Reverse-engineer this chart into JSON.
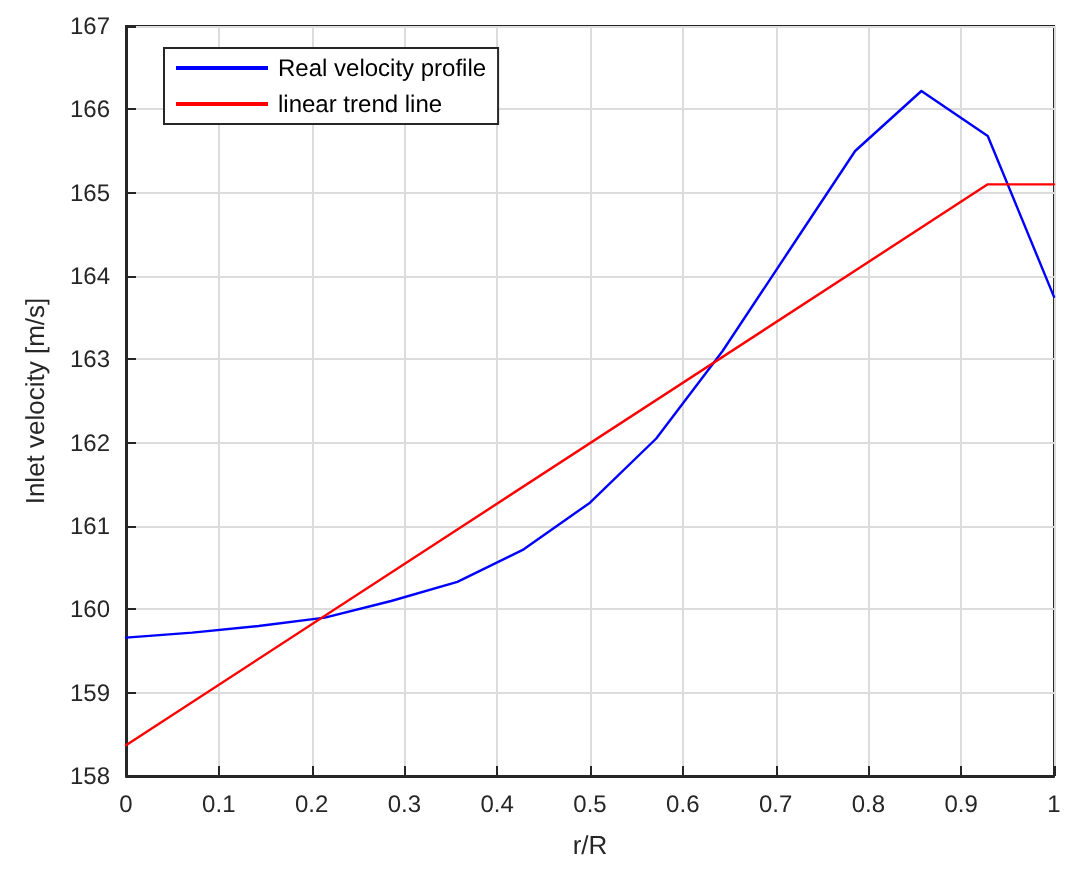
{
  "chart_data": {
    "type": "line",
    "xlabel": "r/R",
    "ylabel": "Inlet velocity [m/s]",
    "x": [
      0,
      0.0714,
      0.1429,
      0.2143,
      0.2857,
      0.3571,
      0.4286,
      0.5,
      0.5714,
      0.6429,
      0.7143,
      0.7857,
      0.8571,
      0.9286,
      1
    ],
    "series": [
      {
        "name": "Real velocity profile",
        "color": "#0000ff",
        "values": [
          159.66,
          159.72,
          159.8,
          159.9,
          160.1,
          160.33,
          160.72,
          161.28,
          162.05,
          163.1,
          164.3,
          165.5,
          166.22,
          165.68,
          163.75
        ]
      },
      {
        "name": "linear trend line",
        "color": "#ff0000",
        "x": [
          0,
          0.9286,
          1
        ],
        "values": [
          158.37,
          165.1,
          165.1
        ]
      }
    ],
    "xlim": [
      0,
      1
    ],
    "xticks": [
      0,
      0.1,
      0.2,
      0.3,
      0.4,
      0.5,
      0.6,
      0.7,
      0.8,
      0.9,
      1
    ],
    "ylim": [
      158,
      167
    ],
    "yticks": [
      158,
      159,
      160,
      161,
      162,
      163,
      164,
      165,
      166,
      167
    ],
    "grid": true,
    "legend": "top left",
    "marker": "none",
    "line_style": "solid"
  }
}
